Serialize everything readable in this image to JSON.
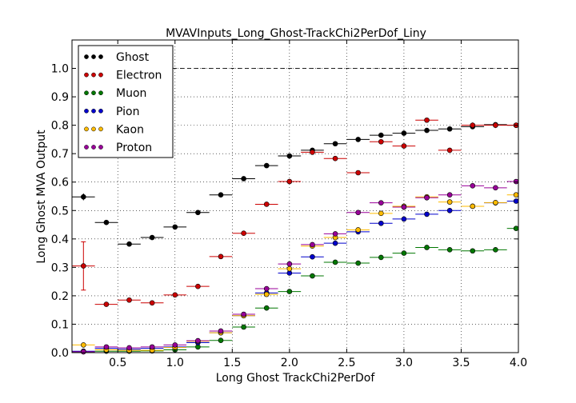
{
  "chart_data": {
    "type": "scatter",
    "title": "MVAVInputs_Long_Ghost-TrackChi2PerDof_Liny",
    "xlabel": "Long Ghost TrackChi2PerDof",
    "ylabel": "Long Ghost MVA Output",
    "xlim": [
      0.1,
      4.0
    ],
    "ylim": [
      0.0,
      1.1
    ],
    "xticks": [
      0.5,
      1.0,
      1.5,
      2.0,
      2.5,
      3.0,
      3.5,
      4.0
    ],
    "xtick_labels": [
      "0.5",
      "1.0",
      "1.5",
      "2.0",
      "2.5",
      "3.0",
      "3.5",
      "4.0"
    ],
    "yticks": [
      0.0,
      0.1,
      0.2,
      0.3,
      0.4,
      0.5,
      0.6,
      0.7,
      0.8,
      0.9,
      1.0
    ],
    "ytick_labels": [
      "0.0",
      "0.1",
      "0.2",
      "0.3",
      "0.4",
      "0.5",
      "0.6",
      "0.7",
      "0.8",
      "0.9",
      "1.0"
    ],
    "grid": true,
    "legend_position": "top-left",
    "reference_line": 1.0,
    "bin_half_width": 0.1,
    "x": [
      0.2,
      0.4,
      0.6,
      0.8,
      1.0,
      1.2,
      1.4,
      1.6,
      1.8,
      2.0,
      2.2,
      2.4,
      2.6,
      2.8,
      3.0,
      3.2,
      3.4,
      3.6,
      3.8,
      4.0
    ],
    "series": [
      {
        "name": "Ghost",
        "color": "#000000",
        "values": [
          0.548,
          0.458,
          0.382,
          0.405,
          0.442,
          0.493,
          0.555,
          0.612,
          0.658,
          0.692,
          0.712,
          0.735,
          0.75,
          0.765,
          0.772,
          0.782,
          0.787,
          0.795,
          0.802,
          0.8
        ],
        "errors": [
          0.012,
          0.004,
          0.004,
          0.004,
          0.004,
          0.004,
          0.004,
          0.004,
          0.004,
          0.004,
          0.004,
          0.004,
          0.004,
          0.004,
          0.004,
          0.004,
          0.004,
          0.004,
          0.005,
          0.008
        ]
      },
      {
        "name": "Electron",
        "color": "#cc0000",
        "values": [
          0.305,
          0.17,
          0.185,
          0.175,
          0.203,
          0.233,
          0.338,
          0.42,
          0.522,
          0.602,
          0.705,
          0.683,
          0.633,
          0.742,
          0.727,
          0.818,
          0.712,
          0.8,
          0.8,
          0.8
        ],
        "errors": [
          0.085,
          0.006,
          0.006,
          0.006,
          0.006,
          0.006,
          0.006,
          0.006,
          0.006,
          0.006,
          0.006,
          0.006,
          0.006,
          0.006,
          0.006,
          0.006,
          0.006,
          0.01,
          0.01,
          0.01
        ]
      },
      {
        "name": "Muon",
        "color": "#007700",
        "values": [
          0.003,
          0.005,
          0.005,
          0.006,
          0.01,
          0.02,
          0.043,
          0.09,
          0.157,
          0.215,
          0.27,
          0.318,
          0.315,
          0.335,
          0.35,
          0.37,
          0.362,
          0.358,
          0.362,
          0.437
        ],
        "errors": [
          0.002,
          0.002,
          0.002,
          0.002,
          0.002,
          0.002,
          0.003,
          0.003,
          0.003,
          0.003,
          0.003,
          0.003,
          0.003,
          0.003,
          0.003,
          0.003,
          0.003,
          0.003,
          0.003,
          0.004
        ]
      },
      {
        "name": "Pion",
        "color": "#0000cc",
        "values": [
          0.005,
          0.015,
          0.012,
          0.015,
          0.02,
          0.035,
          0.07,
          0.13,
          0.21,
          0.28,
          0.337,
          0.385,
          0.425,
          0.455,
          0.47,
          0.487,
          0.5,
          0.515,
          0.527,
          0.533
        ],
        "errors": [
          0.002,
          0.002,
          0.002,
          0.002,
          0.002,
          0.002,
          0.002,
          0.002,
          0.002,
          0.002,
          0.002,
          0.002,
          0.002,
          0.002,
          0.002,
          0.002,
          0.002,
          0.002,
          0.002,
          0.003
        ]
      },
      {
        "name": "Kaon",
        "color": "#ffbb00",
        "values": [
          0.027,
          0.01,
          0.008,
          0.008,
          0.018,
          0.04,
          0.07,
          0.13,
          0.205,
          0.295,
          0.375,
          0.405,
          0.432,
          0.49,
          0.515,
          0.548,
          0.53,
          0.515,
          0.528,
          0.555
        ],
        "errors": [
          0.003,
          0.002,
          0.002,
          0.002,
          0.002,
          0.002,
          0.002,
          0.002,
          0.002,
          0.002,
          0.002,
          0.002,
          0.002,
          0.002,
          0.002,
          0.002,
          0.002,
          0.002,
          0.002,
          0.003
        ]
      },
      {
        "name": "Proton",
        "color": "#990099",
        "values": [
          0.003,
          0.02,
          0.017,
          0.02,
          0.027,
          0.042,
          0.076,
          0.135,
          0.225,
          0.312,
          0.38,
          0.418,
          0.493,
          0.527,
          0.512,
          0.545,
          0.555,
          0.587,
          0.58,
          0.602
        ],
        "errors": [
          0.002,
          0.002,
          0.002,
          0.002,
          0.002,
          0.002,
          0.002,
          0.002,
          0.002,
          0.002,
          0.002,
          0.002,
          0.002,
          0.002,
          0.002,
          0.002,
          0.002,
          0.002,
          0.002,
          0.003
        ]
      }
    ]
  }
}
